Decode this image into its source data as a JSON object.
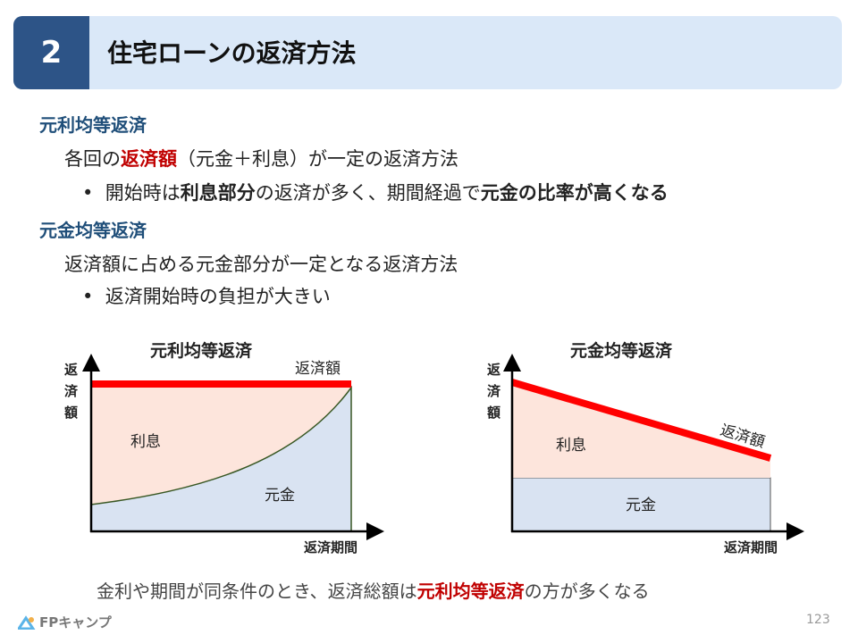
{
  "header": {
    "number": "2",
    "title": "住宅ローンの返済方法"
  },
  "sections": [
    {
      "heading": "元利均等返済",
      "line_pre": "各回の",
      "line_em": "返済額",
      "line_post": "（元金＋利息）が一定の返済方法",
      "bullet": {
        "pre": "開始時は",
        "em1": "利息部分",
        "mid": "の返済が多く、期間経過で",
        "em2": "元金の比率が高くなる"
      }
    },
    {
      "heading": "元金均等返済",
      "line": "返済額に占める元金部分が一定となる返済方法",
      "bullet": "返済開始時の負担が大きい"
    }
  ],
  "charts": [
    {
      "title": "元利均等返済",
      "ylabel": "返済額",
      "xlabel": "返済期間",
      "line_label": "返済額",
      "interest": "利息",
      "principal": "元金"
    },
    {
      "title": "元金均等返済",
      "ylabel": "返済額",
      "xlabel": "返済期間",
      "line_label": "返済額",
      "interest": "利息",
      "principal": "元金"
    }
  ],
  "footer": {
    "pre": "金利や期間が同条件のとき、返済総額は",
    "em": "元利均等返済",
    "post": "の方が多くなる",
    "page": "123",
    "logo": "FPキャンプ"
  },
  "colors": {
    "accent": "#2d5487",
    "red": "#ff0000",
    "interest": "#fde5dc",
    "principal": "#d9e3f2"
  }
}
